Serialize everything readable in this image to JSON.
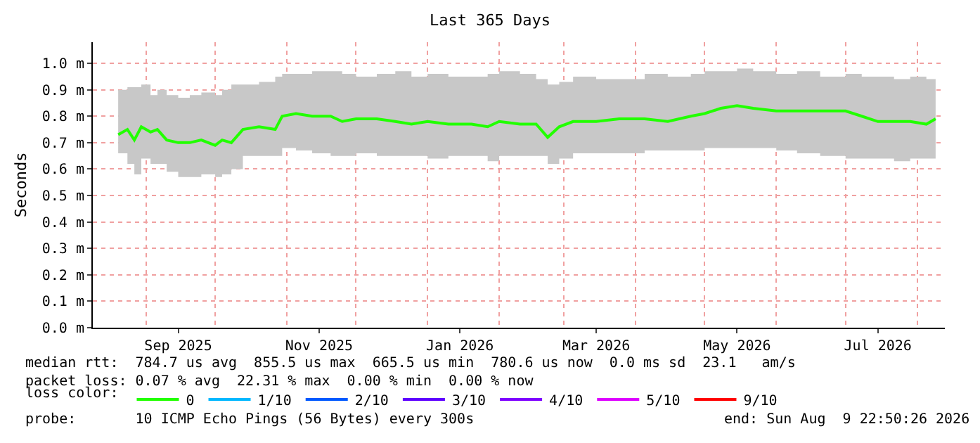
{
  "chart_data": {
    "type": "line",
    "title": "Last 365 Days",
    "ylabel": "Seconds",
    "legend_title": "loss color:",
    "xlim": [
      "2025-08-09",
      "2026-08-13"
    ],
    "xticks": [
      {
        "value": "2025-09-01",
        "label": null
      },
      {
        "value": "2025-09-15",
        "label": "Sep 2025"
      },
      {
        "value": "2025-10-01",
        "label": null
      },
      {
        "value": "2025-11-01",
        "label": null
      },
      {
        "value": "2025-11-15",
        "label": "Nov 2025"
      },
      {
        "value": "2025-12-01",
        "label": null
      },
      {
        "value": "2026-01-01",
        "label": null
      },
      {
        "value": "2026-01-15",
        "label": "Jan 2026"
      },
      {
        "value": "2026-02-01",
        "label": null
      },
      {
        "value": "2026-03-01",
        "label": null
      },
      {
        "value": "2026-03-15",
        "label": "Mar 2026"
      },
      {
        "value": "2026-04-01",
        "label": null
      },
      {
        "value": "2026-05-01",
        "label": null
      },
      {
        "value": "2026-05-15",
        "label": "May 2026"
      },
      {
        "value": "2026-06-01",
        "label": null
      },
      {
        "value": "2026-07-01",
        "label": null
      },
      {
        "value": "2026-07-15",
        "label": "Jul 2026"
      },
      {
        "value": "2026-08-01",
        "label": null
      }
    ],
    "ylim": [
      0,
      1.08
    ],
    "yticks": [
      {
        "value": 0,
        "label": "0.0 m"
      },
      {
        "value": 0.1,
        "label": "0.1 m"
      },
      {
        "value": 0.2,
        "label": "0.2 m"
      },
      {
        "value": 0.3,
        "label": "0.3 m"
      },
      {
        "value": 0.4,
        "label": "0.4 m"
      },
      {
        "value": 0.5,
        "label": "0.5 m"
      },
      {
        "value": 0.6,
        "label": "0.6 m"
      },
      {
        "value": 0.7,
        "label": "0.7 m"
      },
      {
        "value": 0.8,
        "label": "0.8 m"
      },
      {
        "value": 0.9,
        "label": "0.9 m"
      },
      {
        "value": 1.0,
        "label": "1.0 m"
      }
    ],
    "x": [
      "2025-08-20",
      "2025-08-24",
      "2025-08-27",
      "2025-08-30",
      "2025-09-03",
      "2025-09-06",
      "2025-09-10",
      "2025-09-15",
      "2025-09-20",
      "2025-09-25",
      "2025-10-01",
      "2025-10-04",
      "2025-10-08",
      "2025-10-13",
      "2025-10-20",
      "2025-10-27",
      "2025-10-30",
      "2025-11-05",
      "2025-11-12",
      "2025-11-20",
      "2025-11-25",
      "2025-12-01",
      "2025-12-10",
      "2025-12-18",
      "2025-12-25",
      "2026-01-01",
      "2026-01-10",
      "2026-01-20",
      "2026-01-27",
      "2026-02-01",
      "2026-02-10",
      "2026-02-17",
      "2026-02-22",
      "2026-02-27",
      "2026-03-05",
      "2026-03-15",
      "2026-03-25",
      "2026-04-05",
      "2026-04-15",
      "2026-04-25",
      "2026-05-01",
      "2026-05-08",
      "2026-05-15",
      "2026-05-22",
      "2026-06-01",
      "2026-06-10",
      "2026-06-20",
      "2026-07-01",
      "2026-07-08",
      "2026-07-15",
      "2026-07-22",
      "2026-07-29",
      "2026-08-05",
      "2026-08-09"
    ],
    "series": [
      {
        "name": "0",
        "color": "#22ff00",
        "values": [
          0.73,
          0.75,
          0.71,
          0.76,
          0.74,
          0.75,
          0.71,
          0.7,
          0.7,
          0.71,
          0.69,
          0.71,
          0.7,
          0.75,
          0.76,
          0.75,
          0.8,
          0.81,
          0.8,
          0.8,
          0.78,
          0.79,
          0.79,
          0.78,
          0.77,
          0.78,
          0.77,
          0.77,
          0.76,
          0.78,
          0.77,
          0.77,
          0.72,
          0.76,
          0.78,
          0.78,
          0.79,
          0.79,
          0.78,
          0.8,
          0.81,
          0.83,
          0.84,
          0.83,
          0.82,
          0.82,
          0.82,
          0.82,
          0.8,
          0.78,
          0.78,
          0.78,
          0.77,
          0.79
        ],
        "lower": [
          0.66,
          0.62,
          0.58,
          0.64,
          0.62,
          0.62,
          0.59,
          0.57,
          0.57,
          0.58,
          0.57,
          0.58,
          0.6,
          0.65,
          0.65,
          0.65,
          0.68,
          0.67,
          0.66,
          0.65,
          0.65,
          0.66,
          0.65,
          0.65,
          0.65,
          0.64,
          0.65,
          0.65,
          0.63,
          0.65,
          0.65,
          0.65,
          0.62,
          0.64,
          0.66,
          0.66,
          0.66,
          0.67,
          0.67,
          0.67,
          0.68,
          0.68,
          0.68,
          0.68,
          0.67,
          0.66,
          0.65,
          0.64,
          0.64,
          0.64,
          0.63,
          0.64,
          0.64,
          0.65
        ],
        "upper": [
          0.9,
          0.91,
          0.91,
          0.92,
          0.88,
          0.9,
          0.88,
          0.87,
          0.88,
          0.89,
          0.88,
          0.9,
          0.92,
          0.92,
          0.93,
          0.95,
          0.96,
          0.96,
          0.97,
          0.97,
          0.96,
          0.95,
          0.96,
          0.97,
          0.95,
          0.96,
          0.95,
          0.95,
          0.96,
          0.97,
          0.96,
          0.94,
          0.92,
          0.93,
          0.95,
          0.94,
          0.94,
          0.96,
          0.95,
          0.96,
          0.97,
          0.97,
          0.98,
          0.97,
          0.96,
          0.97,
          0.95,
          0.96,
          0.95,
          0.95,
          0.94,
          0.95,
          0.94,
          0.95
        ]
      },
      {
        "name": "1/10",
        "color": "#00b8ff",
        "values": [
          null,
          null,
          null,
          null,
          null,
          null,
          null,
          null,
          null,
          null,
          null,
          null,
          null,
          null,
          null,
          null,
          null,
          null,
          null,
          null,
          null,
          null,
          null,
          null,
          null,
          null,
          null,
          null,
          null,
          null,
          null,
          null,
          null,
          null,
          null,
          null,
          null,
          null,
          null,
          null,
          null,
          null,
          null,
          null,
          null,
          null,
          null,
          null,
          null,
          null,
          null,
          null,
          null,
          null
        ]
      },
      {
        "name": "2/10",
        "color": "#0059ff",
        "values": [
          null,
          null,
          null,
          null,
          null,
          null,
          null,
          null,
          null,
          null,
          null,
          null,
          null,
          null,
          null,
          null,
          null,
          null,
          null,
          null,
          null,
          null,
          null,
          null,
          null,
          null,
          null,
          null,
          null,
          null,
          null,
          null,
          null,
          null,
          null,
          null,
          null,
          null,
          null,
          null,
          null,
          null,
          null,
          null,
          null,
          null,
          null,
          null,
          null,
          null,
          null,
          null,
          null,
          null
        ]
      },
      {
        "name": "3/10",
        "color": "#5e00ff",
        "values": [
          null,
          null,
          null,
          null,
          null,
          null,
          null,
          null,
          null,
          null,
          null,
          null,
          null,
          null,
          null,
          null,
          null,
          null,
          null,
          null,
          null,
          null,
          null,
          null,
          null,
          null,
          null,
          null,
          null,
          null,
          null,
          null,
          null,
          null,
          null,
          null,
          null,
          null,
          null,
          null,
          null,
          null,
          null,
          null,
          null,
          null,
          null,
          null,
          null,
          null,
          null,
          null,
          null,
          null
        ]
      },
      {
        "name": "4/10",
        "color": "#7e00ff",
        "values": [
          null,
          null,
          null,
          null,
          null,
          null,
          null,
          null,
          null,
          null,
          null,
          null,
          null,
          null,
          null,
          null,
          null,
          null,
          null,
          null,
          null,
          null,
          null,
          null,
          null,
          null,
          null,
          null,
          null,
          null,
          null,
          null,
          null,
          null,
          null,
          null,
          null,
          null,
          null,
          null,
          null,
          null,
          null,
          null,
          null,
          null,
          null,
          null,
          null,
          null,
          null,
          null,
          null,
          null
        ]
      },
      {
        "name": "5/10",
        "color": "#dd00ff",
        "values": [
          null,
          null,
          null,
          null,
          null,
          null,
          null,
          null,
          null,
          null,
          null,
          null,
          null,
          null,
          null,
          null,
          null,
          null,
          null,
          null,
          null,
          null,
          null,
          null,
          null,
          null,
          null,
          null,
          null,
          null,
          null,
          null,
          null,
          null,
          null,
          null,
          null,
          null,
          null,
          null,
          null,
          null,
          null,
          null,
          null,
          null,
          null,
          null,
          null,
          null,
          null,
          null,
          null,
          null
        ]
      },
      {
        "name": "9/10",
        "color": "#ff0000",
        "values": [
          null,
          null,
          null,
          null,
          null,
          null,
          null,
          null,
          null,
          null,
          null,
          null,
          null,
          null,
          null,
          null,
          null,
          null,
          null,
          null,
          null,
          null,
          null,
          null,
          null,
          null,
          null,
          null,
          null,
          null,
          null,
          null,
          null,
          null,
          null,
          null,
          null,
          null,
          null,
          null,
          null,
          null,
          null,
          null,
          null,
          null,
          null,
          null,
          null,
          null,
          null,
          null,
          null,
          null
        ]
      }
    ],
    "grid": true,
    "legend": "bottom",
    "marker": "none",
    "line_style": "solid",
    "annotations": [
      "median rtt:  784.7 us avg  855.5 us max  665.5 us min  780.6 us now  0.0 ms sd  23.1   am/s",
      "packet loss: 0.07 % avg  22.31 % max  0.00 % min  0.00 % now",
      "probe:       10 ICMP Echo Pings (56 Bytes) every 300s",
      "end: Sun Aug  9 22:50:26 2026"
    ]
  }
}
